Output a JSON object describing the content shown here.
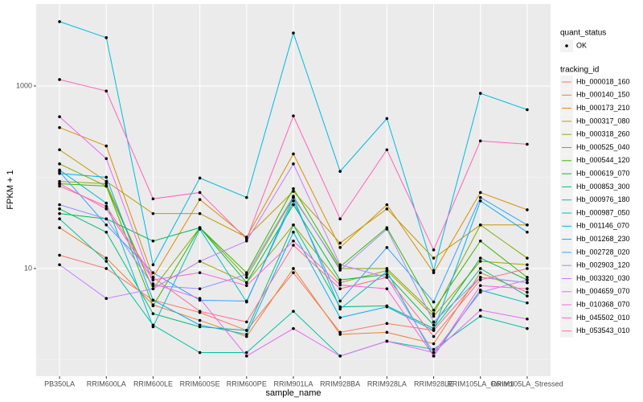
{
  "chart_data": {
    "type": "line",
    "x_label": "sample_name",
    "y_label": "FPKM + 1",
    "log_y": true,
    "grid": true,
    "point_color": "#000000",
    "legend_position": "right",
    "shape_legend_title": "quant_status",
    "shape_legend_entries": [
      "OK"
    ],
    "legend_title": "tracking_id",
    "categories": [
      "PB350LA",
      "RRIM600LA",
      "RRIM600LE",
      "RRIM600SE",
      "RRIM600PE",
      "RRIM901LA",
      "RRIM928BA",
      "RRIM928LA",
      "RRIM928LE",
      "RRIM105LA_Control",
      "RRIM105LA_Stressed"
    ],
    "ylim": [
      0.66,
      7900
    ],
    "yticks": [
      10,
      1000
    ],
    "minor_yticks": [
      1,
      100
    ],
    "series": [
      {
        "name": "Hb_000018_160",
        "color": "#F8766D",
        "values": [
          14,
          10,
          4.5,
          3.3,
          2.1,
          9,
          2,
          2.5,
          2.1,
          8,
          7
        ]
      },
      {
        "name": "Hb_000140_150",
        "color": "#EA8331",
        "values": [
          28,
          13,
          4,
          2.7,
          1.8,
          10,
          1.9,
          2.0,
          1.5,
          9,
          5.5
        ]
      },
      {
        "name": "Hb_000173_210",
        "color": "#D89000",
        "values": [
          350,
          220,
          8,
          57,
          22,
          180,
          17,
          50,
          9,
          68,
          44
        ]
      },
      {
        "name": "Hb_000317_080",
        "color": "#C09B00",
        "values": [
          200,
          90,
          40,
          40,
          22,
          70,
          19,
          45,
          13,
          30,
          30
        ]
      },
      {
        "name": "Hb_000318_260",
        "color": "#A3A500",
        "values": [
          90,
          85,
          6,
          12,
          7,
          30,
          7,
          9.5,
          3,
          12,
          11
        ]
      },
      {
        "name": "Hb_000525_040",
        "color": "#7CAE00",
        "values": [
          140,
          80,
          6,
          28,
          8,
          60,
          10,
          10,
          3.2,
          30,
          13
        ]
      },
      {
        "name": "Hb_000544_120",
        "color": "#39B600",
        "values": [
          85,
          80,
          3.9,
          28,
          9,
          75,
          10.5,
          28,
          3.5,
          20,
          8
        ]
      },
      {
        "name": "Hb_000619_070",
        "color": "#00BB4E",
        "values": [
          40,
          35,
          20,
          28,
          7,
          50,
          7.5,
          8.6,
          2.4,
          13,
          7.5
        ]
      },
      {
        "name": "Hb_000853_300",
        "color": "#00BF7D",
        "values": [
          45,
          25,
          3.2,
          2.3,
          2.1,
          30,
          3.8,
          3.9,
          2.2,
          10,
          5
        ]
      },
      {
        "name": "Hb_000976_180",
        "color": "#00C1A3",
        "values": [
          35,
          12,
          2.4,
          1.2,
          1.2,
          3.4,
          1.1,
          1.6,
          1.3,
          3.0,
          2.2
        ]
      },
      {
        "name": "Hb_000987_050",
        "color": "#00BFC4",
        "values": [
          120,
          52,
          2.3,
          27,
          4.3,
          60,
          3.6,
          9.3,
          1.1,
          5.8,
          4.2
        ]
      },
      {
        "name": "Hb_001146_070",
        "color": "#00BAE0",
        "values": [
          5070,
          3380,
          11,
          98,
          60,
          3800,
          116,
          440,
          9.5,
          830,
          550
        ]
      },
      {
        "name": "Hb_001268_230",
        "color": "#00B0F6",
        "values": [
          110,
          100,
          4.5,
          2.4,
          1.9,
          25,
          2.9,
          3.8,
          2.1,
          55,
          25
        ]
      },
      {
        "name": "Hb_002728_020",
        "color": "#35A2FF",
        "values": [
          115,
          30,
          9,
          4.5,
          4.4,
          55,
          4.4,
          17,
          4.3,
          60,
          30
        ]
      },
      {
        "name": "Hb_002903_120",
        "color": "#9590FF",
        "values": [
          50,
          35,
          6.5,
          6,
          8.6,
          62,
          9.6,
          27,
          2.6,
          8,
          7
        ]
      },
      {
        "name": "Hb_003320_030",
        "color": "#C77CFF",
        "values": [
          11,
          4.7,
          6,
          12,
          20,
          140,
          11,
          8,
          1.2,
          5.5,
          7.5
        ]
      },
      {
        "name": "Hb_004659_070",
        "color": "#E76BF3",
        "values": [
          460,
          160,
          6.8,
          4.7,
          1.1,
          2.2,
          1.1,
          1.6,
          1.2,
          3.5,
          2.8
        ]
      },
      {
        "name": "Hb_010368_070",
        "color": "#FA62DB",
        "values": [
          85,
          45,
          7.5,
          9,
          6.5,
          20,
          6.6,
          6,
          1.1,
          6.5,
          6
        ]
      },
      {
        "name": "Hb_045502_010",
        "color": "#FF62BC",
        "values": [
          1175,
          880,
          58,
          68,
          21,
          470,
          35,
          200,
          16,
          250,
          230
        ]
      },
      {
        "name": "Hb_053543_010",
        "color": "#FF6C91",
        "values": [
          80,
          48,
          8,
          3.4,
          2.6,
          18,
          6,
          8,
          1.8,
          7.5,
          10
        ]
      }
    ]
  }
}
